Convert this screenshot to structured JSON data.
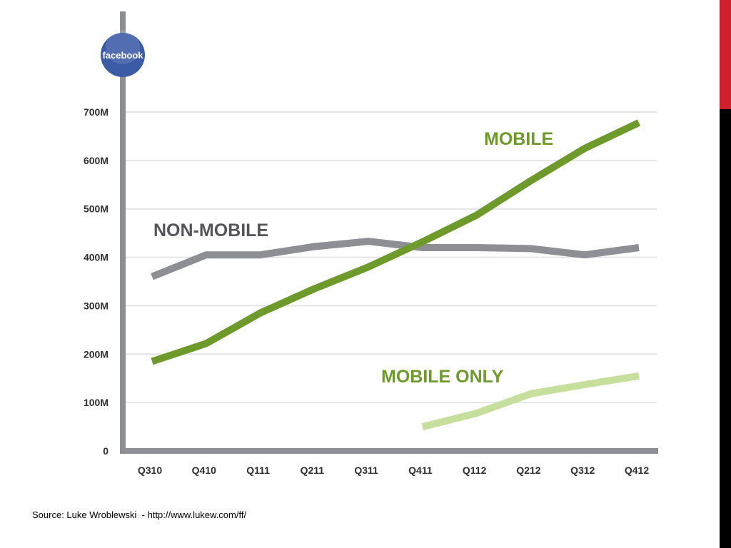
{
  "slide": {
    "source": "Source: Luke Wroblewski  - http://www.lukew.com/ff/",
    "accent_top_color": "#d0202e",
    "accent_bottom_color": "#000000"
  },
  "logo": {
    "text": "facebook",
    "color": "#3b5ba5"
  },
  "chart_data": {
    "type": "line",
    "title": "",
    "xlabel": "",
    "ylabel": "",
    "categories": [
      "Q310",
      "Q410",
      "Q111",
      "Q211",
      "Q311",
      "Q411",
      "Q112",
      "Q212",
      "Q312",
      "Q412"
    ],
    "y_ticks": [
      "0",
      "100M",
      "200M",
      "300M",
      "400M",
      "500M",
      "600M",
      "700M"
    ],
    "y_tick_values": [
      0,
      100,
      200,
      300,
      400,
      500,
      600,
      700
    ],
    "ylim": [
      0,
      700
    ],
    "y_unit": "millions",
    "grid": true,
    "series": [
      {
        "name": "NON-MOBILE",
        "color": "#8e8f94",
        "values": [
          360,
          405,
          405,
          422,
          433,
          420,
          420,
          418,
          405,
          420
        ]
      },
      {
        "name": "MOBILE",
        "color": "#6e9a2c",
        "values": [
          185,
          222,
          285,
          335,
          380,
          432,
          487,
          558,
          625,
          678
        ]
      },
      {
        "name": "MOBILE ONLY",
        "color": "#c7df9c",
        "values": [
          null,
          null,
          null,
          null,
          null,
          50,
          78,
          118,
          137,
          155
        ]
      }
    ]
  }
}
